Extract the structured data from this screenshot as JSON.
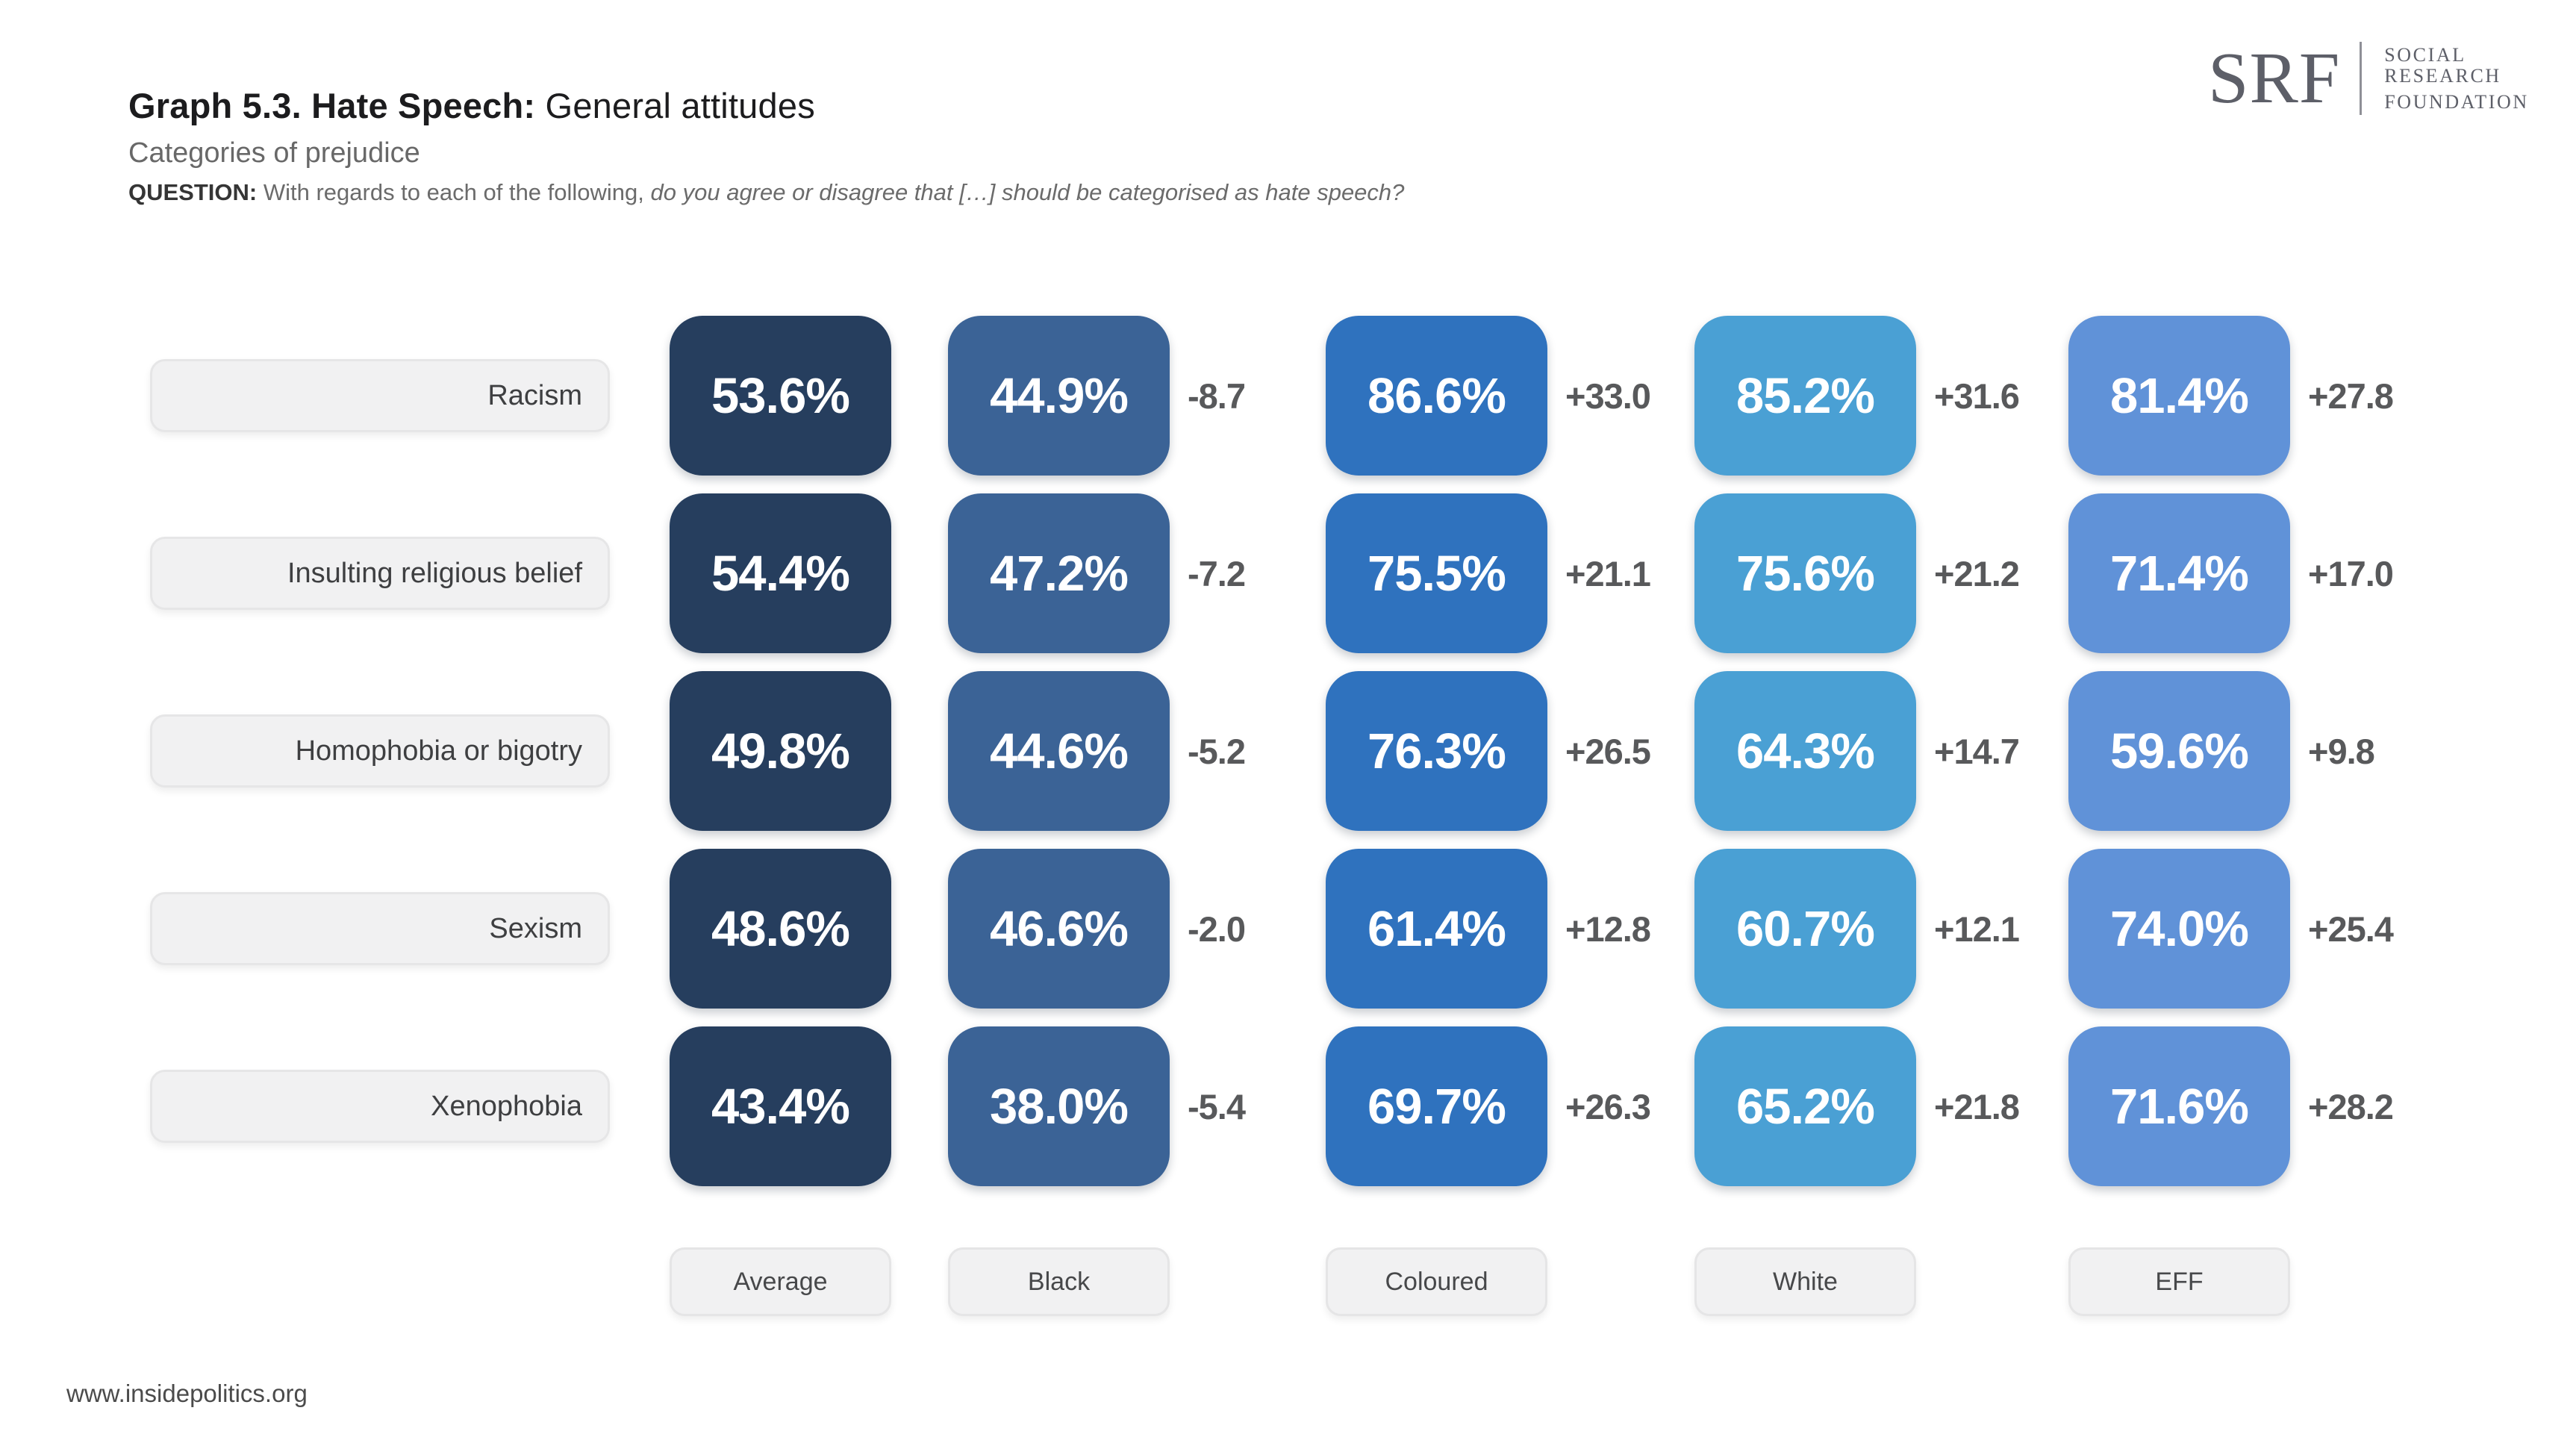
{
  "header": {
    "title_main": "Graph 5.3. Hate Speech:",
    "title_rest": " General attitudes",
    "subtitle": "Categories of prejudice",
    "question_label": "QUESTION:",
    "question_regular": " With regards to each of the following, ",
    "question_italic": "do you agree or disagree that […] should be categorised as hate speech?"
  },
  "logo": {
    "acronym": "SRF",
    "line1": "SOCIAL RESEARCH",
    "line2": "FOUNDATION"
  },
  "footer": {
    "website": "www.insidepolitics.org"
  },
  "colors": {
    "average": "#263E5E",
    "black": "#3B6396",
    "coloured": "#2F72BE",
    "white": "#4AA0D4",
    "eff": "#6092D8",
    "delta_text": "#58595B"
  },
  "chart_data": {
    "type": "table",
    "title": "Graph 5.3. Hate Speech: General attitudes",
    "subtitle": "Categories of prejudice",
    "question": "With regards to each of the following, do you agree or disagree that […] should be categorised as hate speech?",
    "value_unit": "%",
    "columns": [
      "Average",
      "Black",
      "Coloured",
      "White",
      "EFF"
    ],
    "delta_note": "deltas shown relative to Average",
    "rows": [
      {
        "category": "Racism",
        "values": {
          "average": 53.6,
          "black": 44.9,
          "coloured": 86.6,
          "white": 85.2,
          "eff": 81.4
        },
        "deltas": {
          "black": "-8.7",
          "coloured": "+33.0",
          "white": "+31.6",
          "eff": "+27.8"
        }
      },
      {
        "category": "Insulting religious belief",
        "values": {
          "average": 54.4,
          "black": 47.2,
          "coloured": 75.5,
          "white": 75.6,
          "eff": 71.4
        },
        "deltas": {
          "black": "-7.2",
          "coloured": "+21.1",
          "white": "+21.2",
          "eff": "+17.0"
        }
      },
      {
        "category": "Homophobia or bigotry",
        "values": {
          "average": 49.8,
          "black": 44.6,
          "coloured": 76.3,
          "white": 64.3,
          "eff": 59.6
        },
        "deltas": {
          "black": "-5.2",
          "coloured": "+26.5",
          "white": "+14.7",
          "eff": "+9.8"
        }
      },
      {
        "category": "Sexism",
        "values": {
          "average": 48.6,
          "black": 46.6,
          "coloured": 61.4,
          "white": 60.7,
          "eff": 74.0
        },
        "deltas": {
          "black": "-2.0",
          "coloured": "+12.8",
          "white": "+12.1",
          "eff": "+25.4"
        }
      },
      {
        "category": "Xenophobia",
        "values": {
          "average": 43.4,
          "black": 38.0,
          "coloured": 69.7,
          "white": 65.2,
          "eff": 71.6
        },
        "deltas": {
          "black": "-5.4",
          "coloured": "+26.3",
          "white": "+21.8",
          "eff": "+28.2"
        }
      }
    ]
  }
}
